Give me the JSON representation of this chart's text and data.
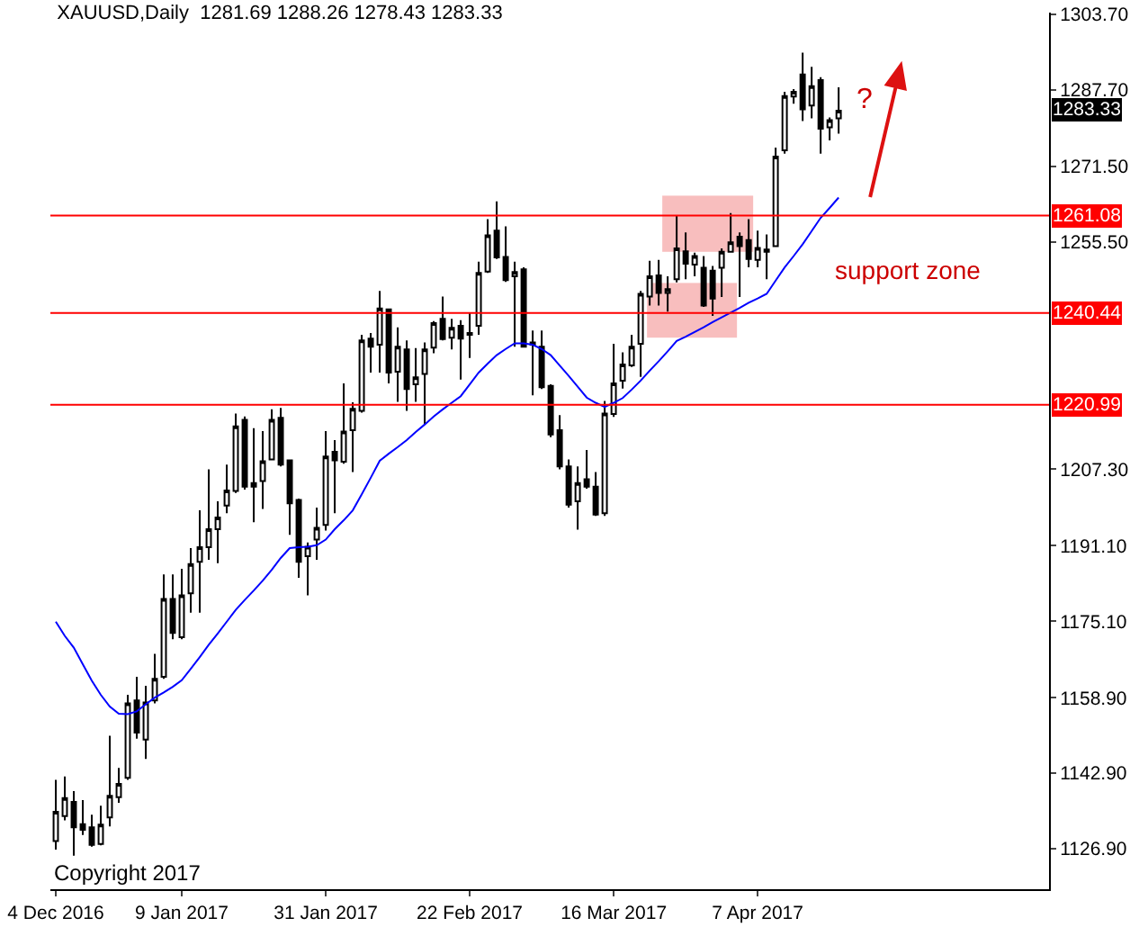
{
  "chart_data": {
    "type": "candlestick",
    "title": "XAUUSD,Daily  1281.69 1288.26 1278.43 1283.33",
    "categories": [
      "4 Dec 2016",
      null,
      null,
      null,
      null,
      null,
      null,
      null,
      null,
      null,
      null,
      null,
      null,
      null,
      "9 Jan 2017",
      null,
      null,
      null,
      null,
      null,
      null,
      null,
      null,
      null,
      null,
      null,
      null,
      null,
      null,
      null,
      "31 Jan 2017",
      null,
      null,
      null,
      null,
      null,
      null,
      null,
      null,
      null,
      null,
      null,
      null,
      null,
      null,
      null,
      "22 Feb 2017",
      null,
      null,
      null,
      null,
      null,
      null,
      null,
      null,
      null,
      null,
      null,
      null,
      null,
      null,
      null,
      "16 Mar 2017",
      null,
      null,
      null,
      null,
      null,
      null,
      null,
      null,
      null,
      null,
      null,
      null,
      null,
      null,
      null,
      "7 Apr 2017",
      null,
      null,
      null,
      null,
      null,
      null,
      null,
      null,
      null
    ],
    "ohlc": [
      [
        1128.5,
        1141.5,
        1126.7,
        1134.7
      ],
      [
        1133.8,
        1142.2,
        1132.9,
        1137.6
      ],
      [
        1136.8,
        1139.1,
        1125.4,
        1131.4
      ],
      [
        1132.1,
        1137.2,
        1129.8,
        1130.9
      ],
      [
        1131.4,
        1134.1,
        1127.3,
        1127.7
      ],
      [
        1127.9,
        1136.0,
        1127.6,
        1132.0
      ],
      [
        1133.5,
        1150.8,
        1131.6,
        1138.1
      ],
      [
        1137.8,
        1144.0,
        1136.6,
        1140.6
      ],
      [
        1141.9,
        1159.5,
        1141.5,
        1157.7
      ],
      [
        1158.3,
        1163.3,
        1150.2,
        1151.5
      ],
      [
        1150.0,
        1161.4,
        1145.9,
        1157.9
      ],
      [
        1158.3,
        1168.2,
        1157.7,
        1162.9
      ],
      [
        1163.3,
        1185.0,
        1162.9,
        1179.8
      ],
      [
        1179.8,
        1185.0,
        1171.3,
        1172.6
      ],
      [
        1171.7,
        1186.2,
        1171.3,
        1180.6
      ],
      [
        1181.0,
        1190.6,
        1176.9,
        1187.2
      ],
      [
        1187.7,
        1198.6,
        1176.9,
        1190.8
      ],
      [
        1190.8,
        1207.3,
        1188.1,
        1194.6
      ],
      [
        1194.6,
        1200.5,
        1187.4,
        1197.1
      ],
      [
        1199.6,
        1208.3,
        1198.0,
        1202.8
      ],
      [
        1202.7,
        1219.1,
        1202.3,
        1216.4
      ],
      [
        1217.8,
        1218.5,
        1203.0,
        1203.6
      ],
      [
        1203.6,
        1216.0,
        1196.1,
        1204.4
      ],
      [
        1204.8,
        1215.4,
        1198.9,
        1209.0
      ],
      [
        1209.4,
        1220.0,
        1209.2,
        1217.8
      ],
      [
        1218.2,
        1220.3,
        1207.9,
        1208.3
      ],
      [
        1209.2,
        1209.2,
        1193.4,
        1200.1
      ],
      [
        1200.8,
        1201.1,
        1184.3,
        1187.7
      ],
      [
        1188.9,
        1191.8,
        1180.6,
        1190.9
      ],
      [
        1192.4,
        1199.2,
        1188.1,
        1194.9
      ],
      [
        1195.5,
        1215.4,
        1194.3,
        1210.0
      ],
      [
        1211.0,
        1213.5,
        1198.0,
        1209.2
      ],
      [
        1208.9,
        1225.5,
        1208.5,
        1215.3
      ],
      [
        1215.6,
        1221.5,
        1206.7,
        1220.1
      ],
      [
        1219.7,
        1235.8,
        1219.3,
        1234.6
      ],
      [
        1235.0,
        1236.2,
        1227.8,
        1233.3
      ],
      [
        1233.7,
        1245.1,
        1227.8,
        1241.4
      ],
      [
        1241.2,
        1241.2,
        1225.5,
        1227.8
      ],
      [
        1228.0,
        1237.4,
        1221.6,
        1233.3
      ],
      [
        1232.7,
        1234.6,
        1219.7,
        1224.3
      ],
      [
        1225.3,
        1233.0,
        1221.6,
        1226.8
      ],
      [
        1227.5,
        1234.2,
        1216.8,
        1232.7
      ],
      [
        1233.1,
        1238.7,
        1231.9,
        1238.3
      ],
      [
        1239.2,
        1243.9,
        1234.6,
        1234.9
      ],
      [
        1235.2,
        1239.2,
        1232.7,
        1237.3
      ],
      [
        1237.7,
        1238.9,
        1226.3,
        1235.0
      ],
      [
        1235.8,
        1240.4,
        1230.9,
        1236.2
      ],
      [
        1237.7,
        1251.3,
        1235.8,
        1248.9
      ],
      [
        1249.2,
        1260.3,
        1248.9,
        1256.9
      ],
      [
        1257.9,
        1264.1,
        1251.9,
        1252.2
      ],
      [
        1252.3,
        1258.8,
        1247.0,
        1247.4
      ],
      [
        1248.2,
        1251.3,
        1233.3,
        1249.1
      ],
      [
        1249.7,
        1250.1,
        1233.3,
        1233.3
      ],
      [
        1234.2,
        1236.7,
        1223.0,
        1233.7
      ],
      [
        1233.3,
        1236.7,
        1224.3,
        1224.7
      ],
      [
        1225.0,
        1225.3,
        1214.1,
        1214.7
      ],
      [
        1215.6,
        1218.8,
        1207.3,
        1207.9
      ],
      [
        1207.9,
        1209.4,
        1199.2,
        1199.8
      ],
      [
        1200.5,
        1207.9,
        1194.5,
        1204.4
      ],
      [
        1205.2,
        1211.4,
        1203.2,
        1203.6
      ],
      [
        1203.6,
        1206.7,
        1197.4,
        1197.7
      ],
      [
        1198.0,
        1221.8,
        1197.4,
        1219.1
      ],
      [
        1219.0,
        1233.9,
        1218.4,
        1225.5
      ],
      [
        1226.1,
        1232.1,
        1224.4,
        1229.5
      ],
      [
        1229.3,
        1235.8,
        1229.0,
        1233.3
      ],
      [
        1233.9,
        1245.1,
        1226.9,
        1244.5
      ],
      [
        1243.9,
        1251.5,
        1242.0,
        1248.2
      ],
      [
        1248.4,
        1251.7,
        1242.0,
        1244.7
      ],
      [
        1244.7,
        1248.2,
        1240.7,
        1245.5
      ],
      [
        1247.6,
        1261.2,
        1246.9,
        1254.1
      ],
      [
        1253.5,
        1257.5,
        1247.6,
        1250.9
      ],
      [
        1250.7,
        1253.2,
        1248.2,
        1252.5
      ],
      [
        1250.0,
        1252.5,
        1241.7,
        1242.0
      ],
      [
        1249.4,
        1250.4,
        1239.8,
        1243.5
      ],
      [
        1250.0,
        1254.1,
        1243.8,
        1253.4
      ],
      [
        1253.4,
        1261.6,
        1253.2,
        1255.4
      ],
      [
        1256.6,
        1257.5,
        1243.8,
        1254.6
      ],
      [
        1255.9,
        1260.3,
        1250.1,
        1251.9
      ],
      [
        1251.7,
        1257.9,
        1250.1,
        1254.2
      ],
      [
        1253.9,
        1257.1,
        1247.6,
        1253.4
      ],
      [
        1254.6,
        1275.5,
        1254.4,
        1273.6
      ],
      [
        1274.9,
        1287.3,
        1274.2,
        1286.4
      ],
      [
        1286.3,
        1287.9,
        1284.8,
        1287.3
      ],
      [
        1291.0,
        1295.6,
        1281.1,
        1283.6
      ],
      [
        1284.4,
        1292.6,
        1281.7,
        1288.5
      ],
      [
        1289.8,
        1290.4,
        1274.2,
        1279.5
      ],
      [
        1279.8,
        1281.9,
        1277.0,
        1281.3
      ],
      [
        1281.69,
        1288.26,
        1278.43,
        1283.33
      ]
    ],
    "series": [
      {
        "type": "line",
        "color": "#0000ff",
        "values": [
          1175,
          1172,
          1169.5,
          1166,
          1162.5,
          1159.5,
          1157,
          1155.5,
          1155.4,
          1156,
          1157.5,
          1158.9,
          1160,
          1161.2,
          1162.6,
          1165,
          1167.5,
          1170.1,
          1172.5,
          1175,
          1177.5,
          1179.6,
          1181.6,
          1183.7,
          1186,
          1188.5,
          1190.6,
          1190.8,
          1190.9,
          1191.2,
          1192.4,
          1194.6,
          1196.5,
          1198.6,
          1202,
          1205.5,
          1209.1,
          1210.6,
          1212,
          1213.5,
          1215.2,
          1216.8,
          1218.5,
          1220,
          1221.4,
          1222.8,
          1225.3,
          1227.8,
          1229.7,
          1231.5,
          1232.8,
          1234.0,
          1234.0,
          1233.7,
          1232.8,
          1231.5,
          1229.3,
          1227.1,
          1224.8,
          1222.5,
          1221.4,
          1220.5,
          1221.4,
          1222.4,
          1224.2,
          1226.1,
          1228.2,
          1230.2,
          1232.3,
          1234.5,
          1235.4,
          1236.4,
          1237.4,
          1238.5,
          1239.5,
          1240.5,
          1241.5,
          1242.6,
          1243.5,
          1244.5,
          1247.3,
          1250.1,
          1252.5,
          1255.0,
          1257.8,
          1260.6,
          1262.7,
          1264.9
        ]
      }
    ],
    "ylim": [
      1118.3,
      1304.1
    ],
    "yticks": [
      {
        "value": 1126.9,
        "label": "1126.90"
      },
      {
        "value": 1142.9,
        "label": "1142.90"
      },
      {
        "value": 1158.9,
        "label": "1158.90"
      },
      {
        "value": 1175.1,
        "label": "1175.10"
      },
      {
        "value": 1191.1,
        "label": "1191.10"
      },
      {
        "value": 1207.3,
        "label": "1207.30"
      },
      {
        "value": 1255.5,
        "label": "1255.50"
      },
      {
        "value": 1271.5,
        "label": "1271.50"
      },
      {
        "value": 1287.7,
        "label": "1287.70"
      },
      {
        "value": 1303.7,
        "label": "1303.70"
      }
    ],
    "ref_lines": [
      {
        "axis": "y",
        "value": 1261.08,
        "label": "1261.08",
        "color": "#ff0000"
      },
      {
        "axis": "y",
        "value": 1240.44,
        "label": "1240.44",
        "color": "#ff0000"
      },
      {
        "axis": "y",
        "value": 1220.99,
        "label": "1220.99",
        "color": "#ff0000"
      }
    ],
    "annotations": [
      "?",
      "support zone",
      "Copyright 2017",
      "1283.33"
    ]
  }
}
